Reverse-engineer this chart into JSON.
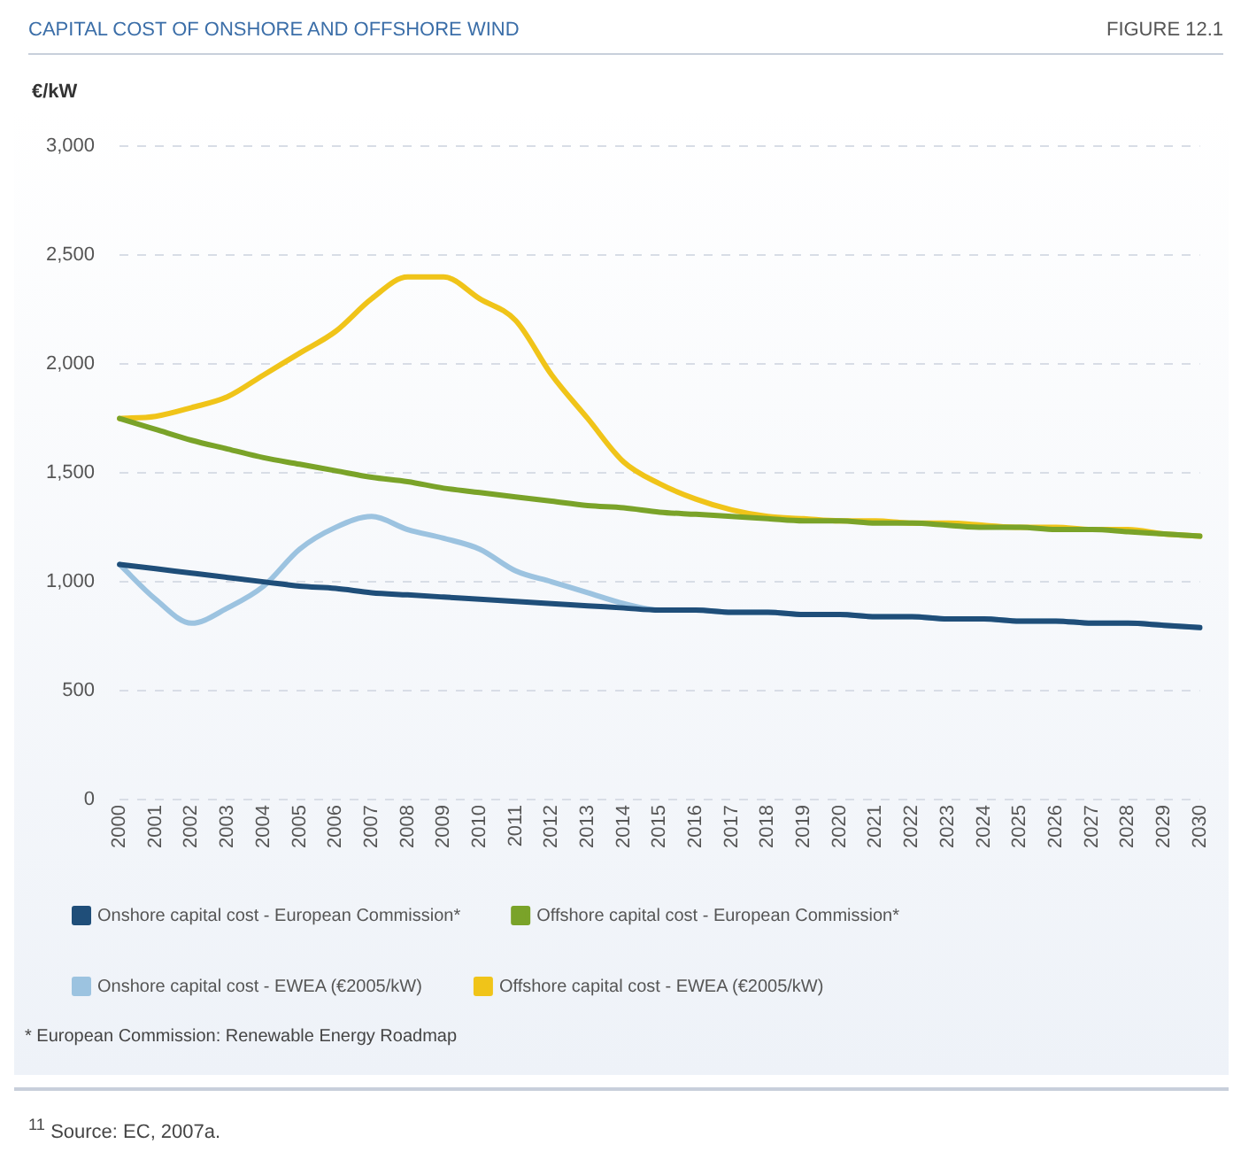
{
  "chart_data": {
    "type": "line",
    "title": "CAPITAL COST OF ONSHORE AND OFFSHORE WIND",
    "subtitle": "FIGURE 12.1",
    "ylabel": "€/kW",
    "categories": [
      "2000",
      "2001",
      "2002",
      "2003",
      "2004",
      "2005",
      "2006",
      "2007",
      "2008",
      "2009",
      "2010",
      "2011",
      "2012",
      "2013",
      "2014",
      "2015",
      "2016",
      "2017",
      "2018",
      "2019",
      "2020",
      "2021",
      "2022",
      "2023",
      "2024",
      "2025",
      "2026",
      "2027",
      "2028",
      "2029",
      "2030"
    ],
    "series": [
      {
        "name": "Onshore capital cost - European Commission*",
        "color": "#1f4e79",
        "values": [
          1080,
          1060,
          1040,
          1020,
          1000,
          980,
          970,
          950,
          940,
          930,
          920,
          910,
          900,
          890,
          880,
          870,
          870,
          860,
          860,
          850,
          850,
          840,
          840,
          830,
          830,
          820,
          820,
          810,
          810,
          800,
          790
        ]
      },
      {
        "name": "Offshore capital cost - European Commission*",
        "color": "#7aa329",
        "values": [
          1750,
          1700,
          1650,
          1610,
          1570,
          1540,
          1510,
          1480,
          1460,
          1430,
          1410,
          1390,
          1370,
          1350,
          1340,
          1320,
          1310,
          1300,
          1290,
          1280,
          1280,
          1270,
          1270,
          1260,
          1250,
          1250,
          1240,
          1240,
          1230,
          1220,
          1210
        ]
      },
      {
        "name": "Onshore capital cost - EWEA (€2005/kW)",
        "color": "#9cc3e0",
        "values": [
          1080,
          920,
          810,
          880,
          980,
          1150,
          1250,
          1300,
          1240,
          1200,
          1150,
          1050,
          1000,
          950,
          900,
          870,
          870,
          860,
          860,
          850,
          850,
          840,
          840,
          830,
          830,
          820,
          820,
          810,
          810,
          800,
          790
        ]
      },
      {
        "name": "Offshore capital cost - EWEA (€2005/kW)",
        "color": "#f0c419",
        "values": [
          1750,
          1760,
          1800,
          1850,
          1950,
          2050,
          2150,
          2300,
          2400,
          2400,
          2300,
          2200,
          1950,
          1750,
          1550,
          1450,
          1380,
          1330,
          1300,
          1290,
          1280,
          1280,
          1270,
          1270,
          1260,
          1250,
          1250,
          1240,
          1240,
          1220,
          1210
        ]
      }
    ],
    "ylim": [
      0,
      3000
    ],
    "yticks": [
      {
        "value": 0,
        "label": "0"
      },
      {
        "value": 500,
        "label": "500"
      },
      {
        "value": 1000,
        "label": "1,000"
      },
      {
        "value": 1500,
        "label": "1,500"
      },
      {
        "value": 2000,
        "label": "2,000"
      },
      {
        "value": 2500,
        "label": "2,500"
      },
      {
        "value": 3000,
        "label": "3,000"
      }
    ],
    "grid": "y",
    "legend": "bottom",
    "marker": "none",
    "line_style": "solid",
    "annotations": [
      "* European Commission: Renewable Energy Roadmap",
      "$^{11}$ Source: EC, 2007a."
    ]
  }
}
